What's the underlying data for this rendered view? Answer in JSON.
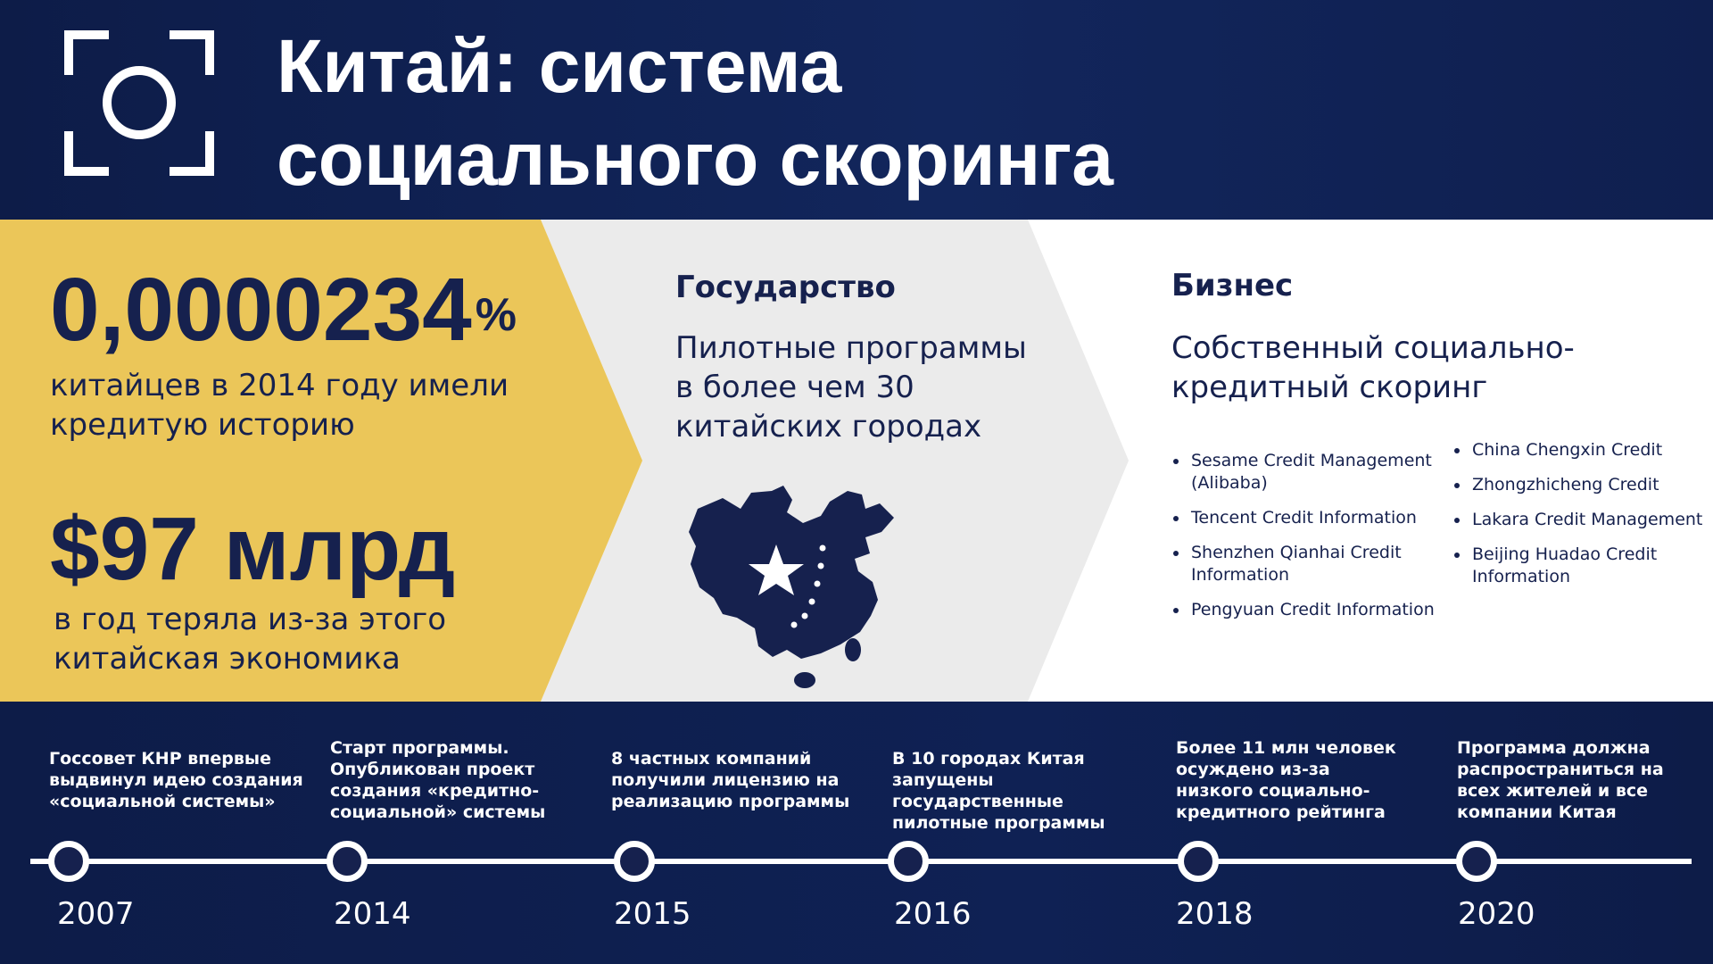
{
  "header": {
    "title_line1": "Китай: система",
    "title_line2": "социального скоринга",
    "icon": "camera-focus-icon"
  },
  "stats": {
    "stat1_value": "0,0000234",
    "stat1_unit": "%",
    "stat1_desc": "китайцев в 2014 году имели кредитую историю",
    "stat2_value": "$97 млрд",
    "stat2_desc": "в год теряла из-за этого китайская экономика"
  },
  "government": {
    "title": "Государство",
    "desc": "Пилотные программы в более чем 30 китайских городах",
    "icon": "china-map-icon"
  },
  "business": {
    "title": "Бизнес",
    "desc": "Собственный социально-кредитный скоринг",
    "companies_col1": [
      "Sesame Credit Management (Alibaba)",
      "Tencent Credit Information",
      "Shenzhen Qianhai Credit Information",
      "Pengyuan Credit Information"
    ],
    "companies_col2": [
      "China Chengxin Credit",
      "Zhongzhicheng Credit",
      "Lakara Credit Management",
      "Beijing Huadao Credit Information"
    ]
  },
  "timeline": [
    {
      "year": "2007",
      "desc": "Госсовет КНР впервые выдвинул идею создания «социальной системы»"
    },
    {
      "year": "2014",
      "desc": "Старт программы. Опубликован проект создания «кредитно-социальной» системы"
    },
    {
      "year": "2015",
      "desc": "8 частных компаний получили лицензию на реализацию программы"
    },
    {
      "year": "2016",
      "desc": "В 10 городах Китая запущены государственные пилотные программы"
    },
    {
      "year": "2018",
      "desc": "Более 11 млн человек осуждено из-за низкого социально-кредитного рейтинга"
    },
    {
      "year": "2020",
      "desc": "Программа должна распространиться на всех жителей и все компании Китая"
    }
  ],
  "colors": {
    "navy": "#16214e",
    "yellow": "#ebc659",
    "light_gray": "#ebebeb",
    "white": "#ffffff"
  }
}
